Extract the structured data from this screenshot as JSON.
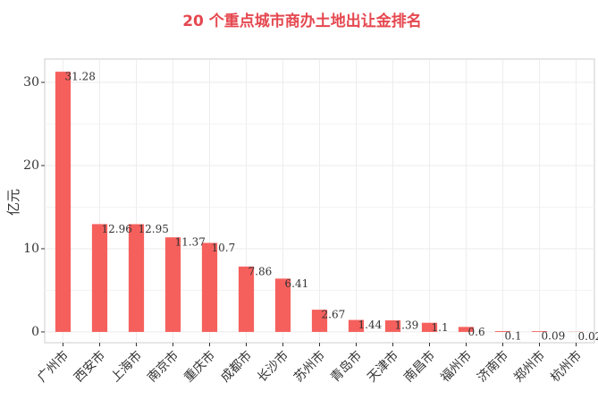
{
  "chart_data": {
    "type": "bar",
    "title": "20 个重点城市商办土地出让金排名",
    "y_label": "亿元",
    "categories": [
      "广州市",
      "西安市",
      "上海市",
      "南京市",
      "重庆市",
      "成都市",
      "长沙市",
      "苏州市",
      "青岛市",
      "天津市",
      "南昌市",
      "福州市",
      "济南市",
      "郑州市",
      "杭州市"
    ],
    "values": [
      31.28,
      12.96,
      12.95,
      11.37,
      10.7,
      7.86,
      6.41,
      2.67,
      1.44,
      1.39,
      1.1,
      0.6,
      0.1,
      0.09,
      0.02
    ],
    "color": "#f5605d",
    "ylim": [
      -1.3,
      32.8
    ],
    "yticks": [
      0,
      10,
      20,
      30
    ],
    "grid": true
  }
}
